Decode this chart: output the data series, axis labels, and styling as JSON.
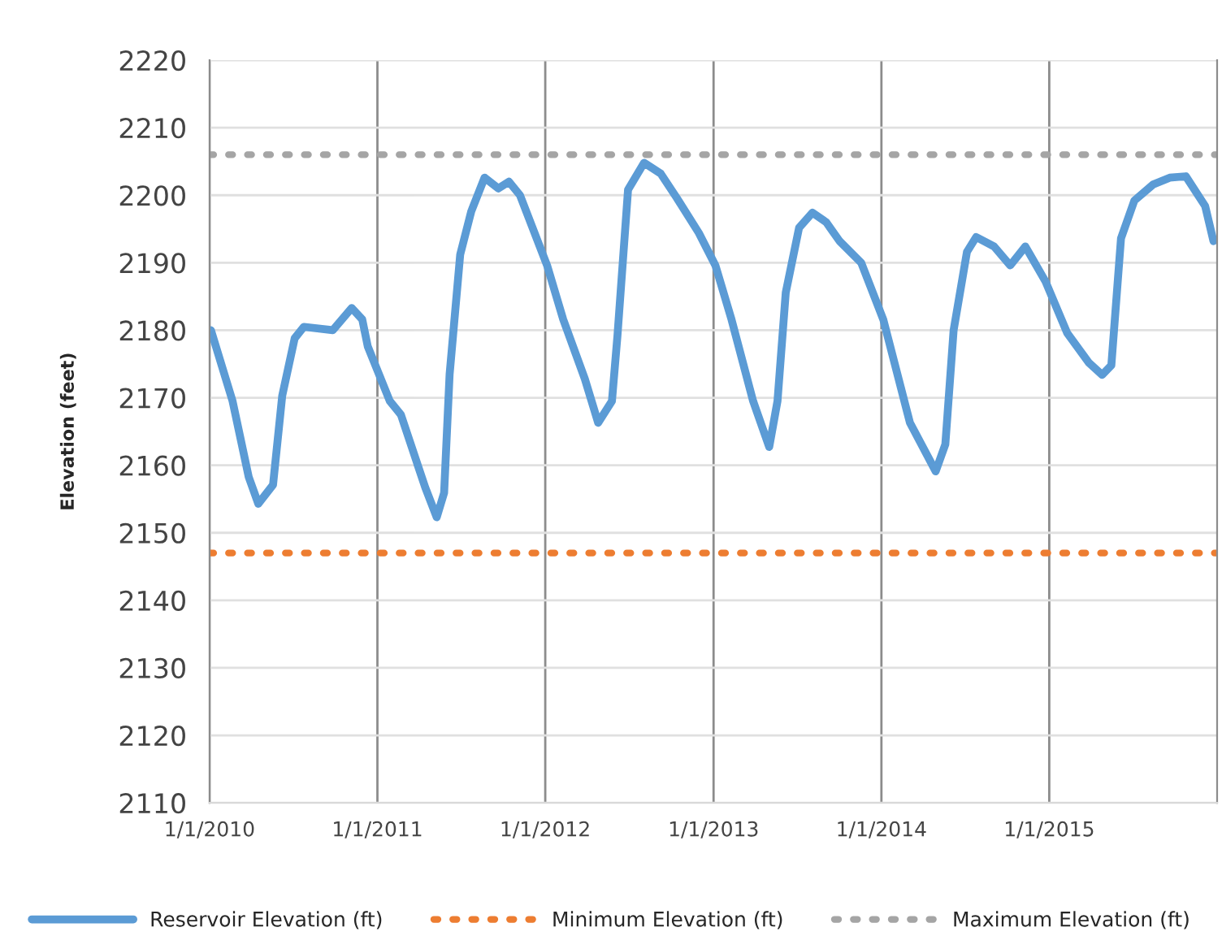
{
  "chart_data": {
    "type": "line",
    "ylabel": "Elevation (feet)",
    "xlim": [
      "2010-01-01",
      "2016-01-01"
    ],
    "xticks": [
      {
        "value": "2010-01-01",
        "label": "1/1/2010"
      },
      {
        "value": "2011-01-01",
        "label": "1/1/2011"
      },
      {
        "value": "2012-01-01",
        "label": "1/1/2012"
      },
      {
        "value": "2013-01-01",
        "label": "1/1/2013"
      },
      {
        "value": "2014-01-01",
        "label": "1/1/2014"
      },
      {
        "value": "2015-01-01",
        "label": "1/1/2015"
      }
    ],
    "ylim": [
      2110,
      2220
    ],
    "yticks": [
      2110,
      2120,
      2130,
      2140,
      2150,
      2160,
      2170,
      2180,
      2190,
      2200,
      2210,
      2220
    ],
    "grid": true,
    "legend": "bottom",
    "marker": "none",
    "series": [
      {
        "name": "Reservoir Elevation (ft)",
        "color": "#5b9bd5",
        "line_style": "solid",
        "x": [
          "2010-01-04",
          "2010-02-20",
          "2010-03-27",
          "2010-04-17",
          "2010-05-19",
          "2010-06-08",
          "2010-07-05",
          "2010-07-25",
          "2010-09-26",
          "2010-11-06",
          "2010-11-29",
          "2010-12-11",
          "2011-01-28",
          "2011-02-21",
          "2011-04-15",
          "2011-05-10",
          "2011-05-26",
          "2011-06-07",
          "2011-06-30",
          "2011-07-24",
          "2011-08-22",
          "2011-09-21",
          "2011-10-14",
          "2011-11-07",
          "2012-01-05",
          "2012-02-09",
          "2012-03-27",
          "2012-04-25",
          "2012-05-25",
          "2012-06-06",
          "2012-06-29",
          "2012-08-03",
          "2012-09-08",
          "2012-10-13",
          "2012-11-30",
          "2013-01-05",
          "2013-02-09",
          "2013-03-28",
          "2013-05-02",
          "2013-05-20",
          "2013-06-07",
          "2013-07-06",
          "2013-08-04",
          "2013-09-03",
          "2013-10-02",
          "2013-11-18",
          "2014-01-05",
          "2014-03-04",
          "2014-04-29",
          "2014-05-20",
          "2014-06-07",
          "2014-07-06",
          "2014-07-26",
          "2014-09-03",
          "2014-10-08",
          "2014-11-10",
          "2014-12-24",
          "2015-02-09",
          "2015-03-28",
          "2015-04-26",
          "2015-05-16",
          "2015-06-06",
          "2015-07-05",
          "2015-08-15",
          "2015-09-20",
          "2015-10-25",
          "2015-12-06",
          "2015-12-24"
        ],
        "values": [
          2180.0,
          2169.5,
          2158.3,
          2154.3,
          2157.1,
          2170.3,
          2178.8,
          2180.5,
          2180.0,
          2183.3,
          2181.6,
          2177.6,
          2169.5,
          2167.5,
          2156.7,
          2152.3,
          2155.9,
          2173.5,
          2191.2,
          2197.6,
          2202.6,
          2201.0,
          2202.0,
          2200.0,
          2189.6,
          2181.6,
          2172.8,
          2166.3,
          2169.5,
          2179.2,
          2200.8,
          2204.8,
          2203.2,
          2199.6,
          2194.4,
          2189.6,
          2181.6,
          2169.5,
          2162.7,
          2169.5,
          2185.6,
          2195.2,
          2197.4,
          2196.0,
          2193.2,
          2190.0,
          2181.6,
          2166.3,
          2159.1,
          2163.1,
          2180.0,
          2191.6,
          2193.8,
          2192.4,
          2189.6,
          2192.4,
          2187.2,
          2179.6,
          2175.2,
          2173.4,
          2174.8,
          2193.6,
          2199.2,
          2201.6,
          2202.6,
          2202.8,
          2198.4,
          2193.2
        ]
      },
      {
        "name": "Minimum Elevation (ft)",
        "color": "#ed7d31",
        "line_style": "dotted",
        "x": [
          "2010-01-01",
          "2016-01-01"
        ],
        "values": [
          2147,
          2147
        ]
      },
      {
        "name": "Maximum Elevation (ft)",
        "color": "#a5a5a5",
        "line_style": "dotted",
        "x": [
          "2010-01-01",
          "2016-01-01"
        ],
        "values": [
          2206,
          2206
        ]
      }
    ]
  }
}
